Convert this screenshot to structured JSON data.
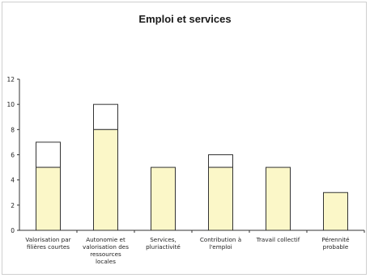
{
  "chart_data": {
    "type": "bar",
    "title": "Emploi et services",
    "xlabel": "",
    "ylabel": "",
    "ylim": [
      0,
      12
    ],
    "yticks": [
      "0",
      "2",
      "4",
      "6",
      "8",
      "10",
      "12"
    ],
    "grid": false,
    "categories": [
      [
        "Valorisation par",
        "filières courtes"
      ],
      [
        "Autonomie et",
        "valorisation des",
        "ressources",
        "locales"
      ],
      [
        "Services,",
        "pluriactivité"
      ],
      [
        "Contribution à",
        "l'emploi"
      ],
      [
        "Travail collectif"
      ],
      [
        "Pérennité",
        "probable"
      ]
    ],
    "series": [
      {
        "values": [
          5,
          8,
          5,
          5,
          5,
          3
        ],
        "color": "#fbf7c8"
      },
      {
        "values": [
          7,
          10,
          5,
          6,
          5,
          3
        ],
        "color": "#ffffff"
      }
    ]
  }
}
